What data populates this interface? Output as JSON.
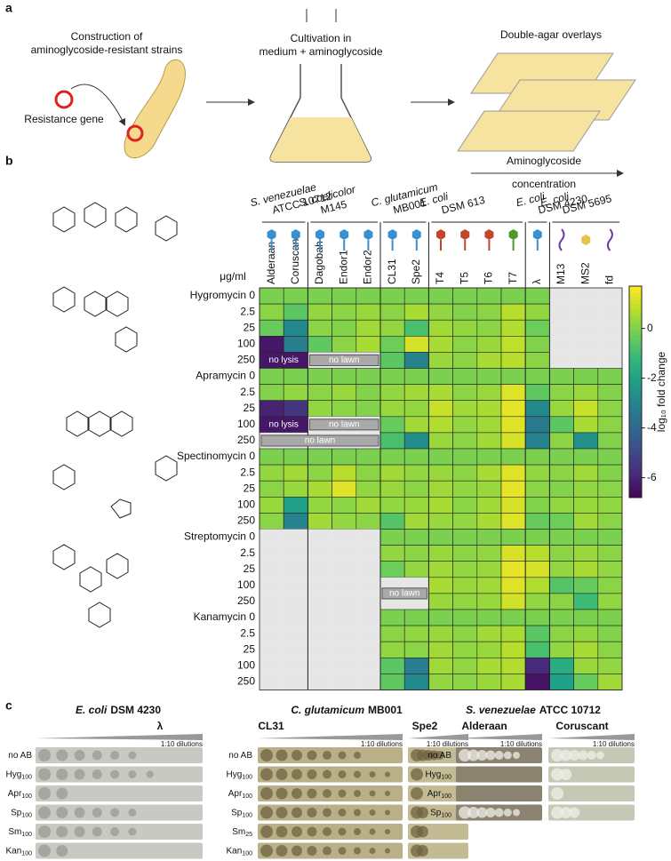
{
  "panel_labels": [
    "a",
    "b",
    "c"
  ],
  "panel_a": {
    "step1": [
      "Construction of",
      "aminoglycoside-resistant strains"
    ],
    "gene": "Resistance gene",
    "step2": [
      "Cultivation in",
      "medium + aminoglycoside"
    ],
    "step3": "Double-agar overlays",
    "gradient": [
      "Aminoglycoside",
      "concentration"
    ]
  },
  "chart_data": {
    "type": "heatmap",
    "unit_label": "μg/ml",
    "groups": [
      {
        "genus": "S. venezuelae",
        "strain": "ATCC 10712"
      },
      {
        "genus": "S. coelicolor",
        "strain": "M145"
      },
      {
        "genus": "C. glutamicum",
        "strain": "MB001"
      },
      {
        "genus": "E. coli",
        "strain": "DSM 613"
      },
      {
        "genus": "E. coli",
        "strain": "DSM 4230"
      },
      {
        "genus": "E. coli",
        "strain": "DSM 5695"
      }
    ],
    "categories": [
      "Alderaan",
      "Coruscant",
      "Dagobah",
      "Endor1",
      "Endor2",
      "CL31",
      "Spe2",
      "T4",
      "T5",
      "T6",
      "T7",
      "λ",
      "M13",
      "MS2",
      "fd"
    ],
    "rows": [
      "Hygromycin 0",
      "2.5",
      "25",
      "100",
      "250",
      "Apramycin 0",
      "2.5",
      "25",
      "100",
      "250",
      "Spectinomycin 0",
      "2.5",
      "25",
      "100",
      "250",
      "Streptomycin 0",
      "2.5",
      "25",
      "100",
      "250",
      "Kanamycin 0",
      "2.5",
      "25",
      "100",
      "250"
    ],
    "values": [
      [
        0,
        0,
        0,
        0,
        0,
        0,
        0,
        0,
        0,
        0,
        0,
        0,
        null,
        null,
        null
      ],
      [
        0.2,
        -0.5,
        0.3,
        0.2,
        0.4,
        0.2,
        0.6,
        0.3,
        0.1,
        0.2,
        0.8,
        0.3,
        null,
        null,
        null
      ],
      [
        -0.3,
        -2.8,
        0.2,
        0.1,
        0.5,
        0.3,
        -0.8,
        0.5,
        0.3,
        0.2,
        0.7,
        -0.2,
        null,
        null,
        null
      ],
      [
        -6.3,
        -3.2,
        -0.4,
        0.2,
        0.6,
        -0.2,
        1.2,
        0.6,
        0.2,
        0.4,
        0.9,
        0.1,
        null,
        null,
        null
      ],
      [
        -6.3,
        -6.3,
        null,
        null,
        null,
        -0.5,
        -3.0,
        0.4,
        0.2,
        0.6,
        0.8,
        0.2,
        null,
        null,
        null
      ],
      [
        0,
        0,
        0,
        0,
        0,
        0,
        0,
        0,
        0,
        0,
        0,
        0,
        0,
        0,
        0
      ],
      [
        0.1,
        0.3,
        0.2,
        0.4,
        0.1,
        0.3,
        0.5,
        0.6,
        0.2,
        0.4,
        1.3,
        -0.4,
        0.2,
        0.4,
        0.1
      ],
      [
        -6.0,
        -5.5,
        0.3,
        0.2,
        0.1,
        0.4,
        0.3,
        1.0,
        0.5,
        0.6,
        1.4,
        -2.8,
        0.4,
        1.0,
        0.2
      ],
      [
        -6.3,
        -6.3,
        null,
        null,
        null,
        -0.3,
        0.5,
        0.7,
        0.3,
        0.5,
        1.3,
        -3.3,
        -0.5,
        0.6,
        0.2
      ],
      [
        null,
        null,
        null,
        null,
        null,
        -0.8,
        -2.6,
        0.4,
        0.2,
        0.5,
        1.2,
        -3.0,
        0.2,
        -2.5,
        0.1
      ],
      [
        0,
        0,
        0,
        0,
        0,
        0,
        0,
        0,
        0,
        0,
        0,
        0,
        0,
        0,
        0
      ],
      [
        0.3,
        0.5,
        0.2,
        0.8,
        0.2,
        0.5,
        0.3,
        0.4,
        0.2,
        0.6,
        1.3,
        0.3,
        0.2,
        0.5,
        0.1
      ],
      [
        0.2,
        0.4,
        0.6,
        1.3,
        0.3,
        0.4,
        0.2,
        0.5,
        0.3,
        0.4,
        1.4,
        0.2,
        0.1,
        0.3,
        0.2
      ],
      [
        0.4,
        -2.0,
        0.3,
        0.2,
        0.5,
        0.3,
        0.4,
        0.6,
        0.2,
        0.5,
        1.2,
        0.1,
        0.3,
        0.4,
        0.3
      ],
      [
        0.2,
        -3.0,
        0.5,
        0.3,
        0.2,
        -0.6,
        0.5,
        0.4,
        0.3,
        0.6,
        1.3,
        -0.3,
        -0.2,
        0.5,
        0.2
      ],
      [
        null,
        null,
        null,
        null,
        null,
        0,
        0,
        0,
        0,
        0,
        0,
        0,
        0,
        0,
        0
      ],
      [
        null,
        null,
        null,
        null,
        null,
        0.3,
        0.2,
        0.4,
        0.2,
        0.3,
        1.2,
        0.8,
        0.2,
        0.4,
        0.2
      ],
      [
        null,
        null,
        null,
        null,
        null,
        -0.2,
        0.3,
        0.5,
        0.3,
        0.4,
        1.4,
        1.2,
        0.3,
        0.6,
        0.3
      ],
      [
        null,
        null,
        null,
        null,
        null,
        null,
        null,
        0.6,
        0.4,
        0.5,
        1.3,
        0.7,
        -0.6,
        -0.3,
        0.2
      ],
      [
        null,
        null,
        null,
        null,
        null,
        null,
        null,
        0.4,
        0.3,
        0.4,
        1.1,
        0.3,
        0.2,
        -1.0,
        0.3
      ],
      [
        null,
        null,
        null,
        null,
        null,
        0,
        0,
        0,
        0,
        0,
        0,
        0,
        0,
        0,
        0
      ],
      [
        null,
        null,
        null,
        null,
        null,
        0.2,
        0.3,
        0.4,
        0.2,
        0.5,
        0.6,
        -0.5,
        0.2,
        0.3,
        0.1
      ],
      [
        null,
        null,
        null,
        null,
        null,
        0.3,
        0.2,
        0.5,
        0.3,
        0.4,
        0.8,
        -0.8,
        0.3,
        0.6,
        0.2
      ],
      [
        null,
        null,
        null,
        null,
        null,
        -0.5,
        -3.2,
        0.5,
        0.3,
        0.6,
        0.7,
        -5.8,
        -1.6,
        0.4,
        0.3
      ],
      [
        null,
        null,
        null,
        null,
        null,
        -0.4,
        -2.8,
        0.3,
        0.2,
        0.4,
        0.6,
        -6.4,
        -2.0,
        -0.3,
        0.5
      ]
    ],
    "annotations": [
      "no lysis",
      "no lawn",
      "no lysis",
      "no lawn",
      "no lawn",
      "no lawn"
    ],
    "colorbar": {
      "label": "log₁₀ fold change",
      "ylim": [
        -6.8,
        1.7
      ],
      "yticks": [
        0,
        -2,
        -4,
        -6
      ]
    }
  },
  "panel_c": {
    "dilutions": "1:10 dilutions",
    "groups": [
      {
        "genus": "E. coli",
        "strain": "DSM 4230",
        "phages": [
          "λ"
        ],
        "rows": [
          [
            "no AB"
          ],
          [
            "Hyg",
            "100"
          ],
          [
            "Apr",
            "100"
          ],
          [
            "Sp",
            "100"
          ],
          [
            "Sm",
            "100"
          ],
          [
            "Kan",
            "100"
          ]
        ]
      },
      {
        "genus": "C. glutamicum",
        "strain": "MB001",
        "phages": [
          "CL31",
          "Spe2"
        ],
        "rows": [
          [
            "no AB"
          ],
          [
            "Hyg",
            "100"
          ],
          [
            "Apr",
            "100"
          ],
          [
            "Sp",
            "100"
          ],
          [
            "Sm",
            "25"
          ],
          [
            "Kan",
            "100"
          ]
        ]
      },
      {
        "genus": "S. venezuelae",
        "strain": "ATCC 10712",
        "phages": [
          "Alderaan",
          "Coruscant"
        ],
        "rows": [
          [
            "no AB"
          ],
          [
            "Hyg",
            "100"
          ],
          [
            "Apr",
            "100"
          ],
          [
            "Sp",
            "100"
          ]
        ]
      }
    ]
  }
}
